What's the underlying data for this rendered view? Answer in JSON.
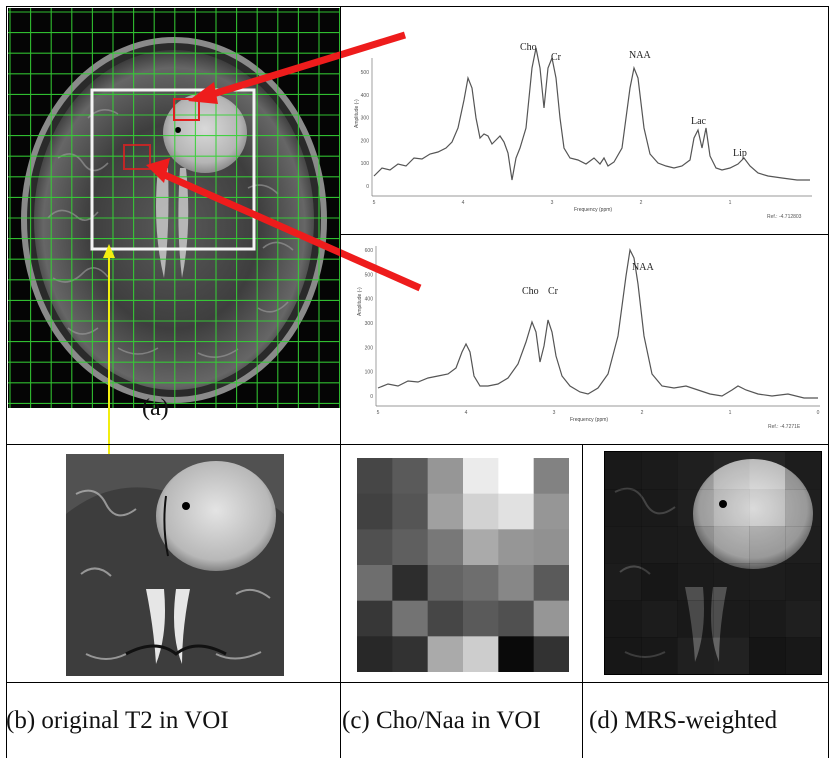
{
  "panels": {
    "a": {
      "label": "(a)"
    },
    "b": {
      "caption": "(b) original T2 in VOI"
    },
    "c": {
      "caption": "(c) Cho/Naa in VOI"
    },
    "d": {
      "caption": "(d) MRS-weighted"
    }
  },
  "spectrum_tumor": {
    "peaks": {
      "cho": "Cho",
      "cr": "Cr",
      "naa": "NAA",
      "lac": "Lac",
      "lip": "Lip"
    },
    "ylabel": "Amplitude (-)",
    "xlabel": "Frequency (ppm)",
    "ref": "Ref.: -4.712803",
    "yticks": [
      "0",
      "100",
      "200",
      "300",
      "400",
      "500"
    ],
    "xticks": [
      "5",
      "4",
      "3",
      "2",
      "1"
    ]
  },
  "spectrum_normal": {
    "peaks": {
      "cho": "Cho",
      "cr": "Cr",
      "naa": "NAA"
    },
    "ylabel": "Amplitude (-)",
    "xlabel": "Frequency (ppm)",
    "ref": "Ref.: -4.7271E",
    "yticks": [
      "0",
      "100",
      "200",
      "300",
      "400",
      "500",
      "600"
    ],
    "xticks": [
      "5",
      "4",
      "3",
      "2",
      "1",
      "0"
    ]
  },
  "cho_naa_map": {
    "rows": 6,
    "cols": 6,
    "gray_levels": [
      [
        70,
        90,
        150,
        235,
        255,
        130
      ],
      [
        65,
        85,
        160,
        210,
        225,
        150
      ],
      [
        80,
        95,
        120,
        170,
        150,
        145
      ],
      [
        110,
        45,
        100,
        110,
        135,
        90
      ],
      [
        55,
        115,
        70,
        90,
        80,
        150
      ],
      [
        40,
        50,
        170,
        205,
        10,
        50
      ]
    ]
  },
  "colors": {
    "grid_green": "#35d235",
    "arrow_red": "#ee1c1c",
    "arrow_yellow": "#f2ee10",
    "voi_white": "#f4f4f4",
    "roi_red": "#e02020"
  }
}
